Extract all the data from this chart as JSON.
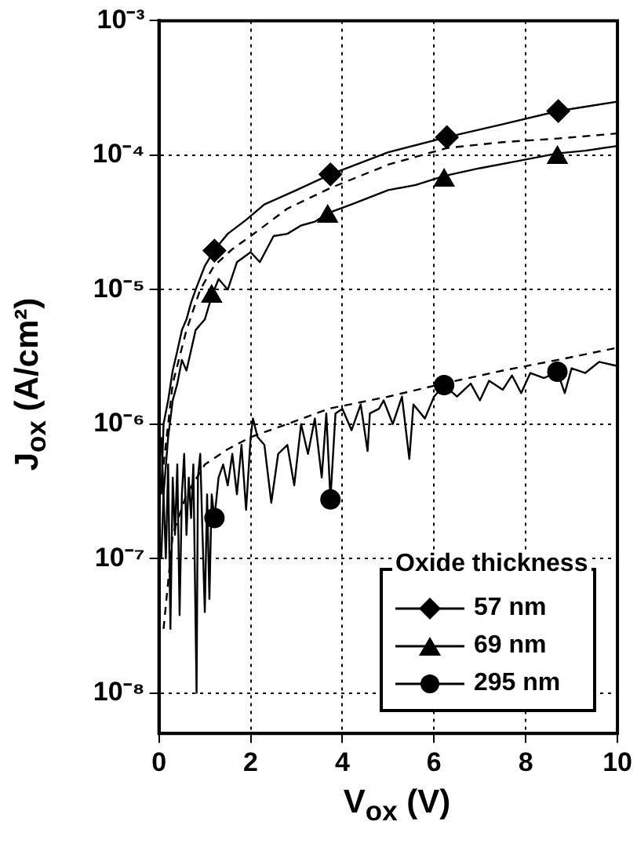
{
  "chart_data": {
    "type": "line",
    "xlabel": "V$_{ox}$ (V)",
    "ylabel": "J$_{ox}$ (A/cm²)",
    "log": "y",
    "grid": true,
    "legend": "bottom right",
    "legend_title": "Oxide thickness",
    "xlim": [
      0,
      10
    ],
    "xticks": [
      0,
      2,
      4,
      6,
      8,
      10
    ],
    "ylim": [
      5e-09,
      0.001
    ],
    "yticks": [
      {
        "value": 1e-08,
        "label": "10⁻⁸"
      },
      {
        "value": 1e-07,
        "label": "10⁻⁷"
      },
      {
        "value": 1e-06,
        "label": "10⁻⁶"
      },
      {
        "value": 1e-05,
        "label": "10⁻⁵"
      },
      {
        "value": 0.0001,
        "label": "10⁻⁴"
      },
      {
        "value": 0.001,
        "label": "10⁻³"
      }
    ],
    "series": [
      {
        "type": "line",
        "color": "#000000",
        "marker": "none",
        "line_style": "solid",
        "x": [
          0.05,
          0.1,
          0.2,
          0.3,
          0.4,
          0.5,
          0.6,
          0.7,
          0.8,
          1.0,
          1.2,
          1.5,
          1.9,
          2.3,
          3.0,
          3.74,
          5.0,
          6.28,
          7.5,
          8.71,
          10
        ],
        "values": [
          3e-07,
          1e-06,
          1.5e-06,
          2.5e-06,
          3.5e-06,
          5e-06,
          6e-06,
          8e-06,
          1e-05,
          1.5e-05,
          1.95e-05,
          2.6e-05,
          3.3e-05,
          4.3e-05,
          5.5e-05,
          7.2e-05,
          0.000105,
          0.000136,
          0.00017,
          0.000213,
          0.00025
        ]
      },
      {
        "type": "line",
        "color": "#000000",
        "marker": "none",
        "line_style": "dashed",
        "x": [
          0.1,
          0.3,
          0.6,
          0.9,
          1.2,
          1.6,
          2.0,
          2.8,
          3.74,
          5.0,
          6.28,
          7.5,
          8.7,
          10
        ],
        "values": [
          5e-07,
          2e-06,
          5e-06,
          1e-05,
          1.5e-05,
          2e-05,
          2.5e-05,
          4e-05,
          5.7e-05,
          8.5e-05,
          0.000113,
          0.000125,
          0.000133,
          0.000145
        ]
      },
      {
        "type": "line",
        "color": "#000000",
        "marker": "none",
        "line_style": "solid",
        "x": [
          0.05,
          0.1,
          0.2,
          0.3,
          0.4,
          0.5,
          0.6,
          0.8,
          1.0,
          1.15,
          1.3,
          1.5,
          1.7,
          2.0,
          2.2,
          2.5,
          2.8,
          3.1,
          3.4,
          3.68,
          4.2,
          5.0,
          5.6,
          6.22,
          7.0,
          7.8,
          8.69,
          9.3,
          10
        ],
        "values": [
          1e-07,
          3e-07,
          8e-07,
          1.5e-06,
          2e-06,
          3e-06,
          2.5e-06,
          5e-06,
          6e-06,
          8.9e-06,
          1.2e-05,
          1e-05,
          1.6e-05,
          1.9e-05,
          1.6e-05,
          2.5e-05,
          2.6e-05,
          3e-05,
          3.2e-05,
          3.7e-05,
          4.3e-05,
          5.5e-05,
          6e-05,
          7e-05,
          8e-05,
          9e-05,
          0.000103,
          0.000108,
          0.000117
        ]
      },
      {
        "type": "line",
        "color": "#000000",
        "marker": "none",
        "line_style": "dashed",
        "x": [
          0.1,
          0.3,
          0.6,
          1.0,
          1.5,
          2.0,
          2.8,
          3.7,
          5.0,
          6.2,
          7.5,
          8.7,
          10
        ],
        "values": [
          3e-08,
          1.5e-07,
          3e-07,
          5e-07,
          6.5e-07,
          8e-07,
          1e-06,
          1.3e-06,
          1.6e-06,
          2e-06,
          2.5e-06,
          3e-06,
          3.7e-06
        ]
      },
      {
        "type": "line",
        "color": "#000000",
        "marker": "none",
        "line_style": "solid",
        "x": [
          0.05,
          0.1,
          0.15,
          0.2,
          0.25,
          0.3,
          0.35,
          0.4,
          0.45,
          0.5,
          0.55,
          0.6,
          0.65,
          0.7,
          0.75,
          0.82,
          0.85,
          0.9,
          0.95,
          1.0,
          1.05,
          1.1,
          1.15,
          1.21,
          1.3,
          1.4,
          1.5,
          1.6,
          1.7,
          1.8,
          1.9,
          2.0,
          2.05,
          2.15,
          2.3,
          2.45,
          2.6,
          2.8,
          2.95,
          3.1,
          3.25,
          3.4,
          3.55,
          3.65,
          3.74,
          3.85,
          4.0,
          4.2,
          4.4,
          4.55,
          4.6,
          4.8,
          4.9,
          5.1,
          5.3,
          5.46,
          5.55,
          5.8,
          6.0,
          6.22,
          6.5,
          6.8,
          7.0,
          7.2,
          7.5,
          7.7,
          7.9,
          8.1,
          8.4,
          8.69,
          8.85,
          9.0,
          9.3,
          9.6,
          10
        ],
        "values": [
          8e-07,
          3e-07,
          1e-07,
          5e-07,
          3e-08,
          4e-07,
          1.5e-07,
          5e-07,
          3.8e-08,
          3e-07,
          6e-07,
          1.5e-07,
          4e-07,
          2e-07,
          5e-07,
          1e-08,
          4e-07,
          6e-07,
          1.5e-07,
          4e-08,
          3e-07,
          5e-08,
          3e-07,
          2e-07,
          4e-07,
          5e-07,
          3.5e-07,
          6e-07,
          3e-07,
          7e-07,
          2.3e-07,
          8e-07,
          1.1e-06,
          8e-07,
          7e-07,
          2.6e-07,
          6e-07,
          7e-07,
          3.5e-07,
          1e-06,
          6e-07,
          1.1e-06,
          4e-07,
          1.2e-06,
          2.75e-07,
          1.2e-06,
          1.3e-06,
          9e-07,
          1.4e-06,
          6.3e-07,
          1.2e-06,
          1.3e-06,
          1.5e-06,
          1e-06,
          1.6e-06,
          5.5e-07,
          1.4e-06,
          1.1e-06,
          1.6e-06,
          1.95e-06,
          1.6e-06,
          2e-06,
          1.5e-06,
          2.1e-06,
          1.8e-06,
          2.3e-06,
          1.7e-06,
          2.4e-06,
          2.2e-06,
          2.45e-06,
          1.7e-06,
          2.6e-06,
          2.4e-06,
          2.9e-06,
          2.7e-06
        ]
      },
      {
        "type": "scatter",
        "name": "57 nm",
        "color": "#000000",
        "marker": "diamond",
        "x": [
          1.21,
          3.74,
          6.28,
          8.71
        ],
        "values": [
          1.95e-05,
          7.2e-05,
          0.000136,
          0.000213
        ]
      },
      {
        "type": "scatter",
        "name": "69 nm",
        "color": "#000000",
        "marker": "triangle",
        "x": [
          1.15,
          3.68,
          6.22,
          8.69
        ],
        "values": [
          8.9e-06,
          3.5e-05,
          6.5e-05,
          9.6e-05
        ]
      },
      {
        "type": "scatter",
        "name": "295 nm",
        "color": "#000000",
        "marker": "circle",
        "x": [
          1.21,
          3.74,
          6.22,
          8.69
        ],
        "values": [
          2e-07,
          2.75e-07,
          1.95e-06,
          2.45e-06
        ]
      }
    ]
  }
}
